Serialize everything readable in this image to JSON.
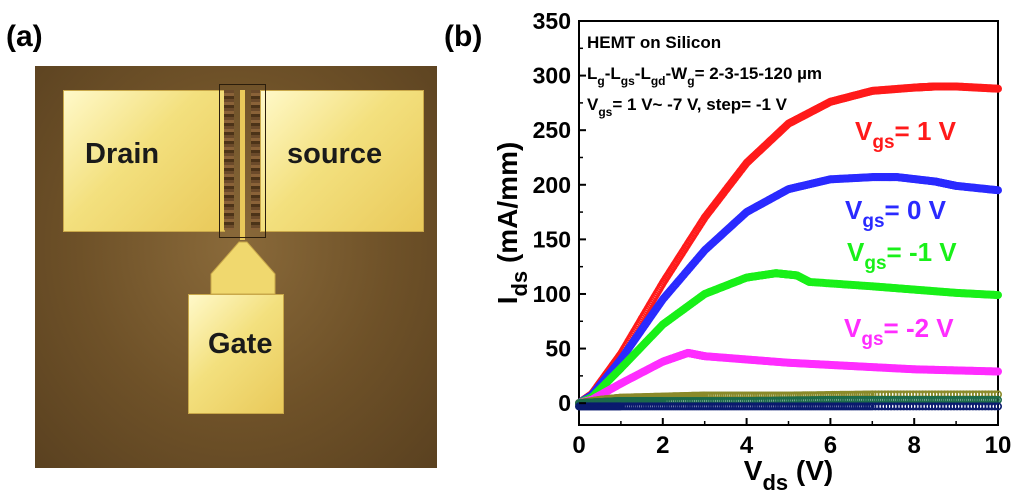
{
  "panel_a": {
    "label": "(a)",
    "drain_label": "Drain",
    "source_label": "source",
    "gate_label": "Gate"
  },
  "panel_b": {
    "label": "(b)"
  },
  "colors": {
    "vgs_1": "#ff1a1a",
    "vgs_0": "#2a2aff",
    "vgs_m1": "#19f019",
    "vgs_m2": "#ff2dff",
    "vgs_m3": "#8a8a2a",
    "vgs_m4": "#1d6b4a",
    "vgs_low": "#0a1a6e"
  },
  "chart_data": {
    "type": "scatter",
    "xlabel_main": "V",
    "xlabel_sub": "ds",
    "xlabel_unit": " (V)",
    "ylabel_main": "I",
    "ylabel_sub": "ds",
    "ylabel_unit": " (mA/mm)",
    "xlim": [
      0,
      10
    ],
    "ylim": [
      -20,
      350
    ],
    "xticks": [
      "0",
      "2",
      "4",
      "6",
      "8",
      "10"
    ],
    "yticks": [
      "0",
      "50",
      "100",
      "150",
      "200",
      "250",
      "300",
      "350"
    ],
    "grid": false,
    "annotation_lines": [
      {
        "segments": [
          {
            "t": "HEMT on Silicon",
            "sub": false
          }
        ]
      },
      {
        "segments": [
          {
            "t": "L",
            "sub": false
          },
          {
            "t": "g",
            "sub": true
          },
          {
            "t": "-L",
            "sub": false
          },
          {
            "t": "gs",
            "sub": true
          },
          {
            "t": "-L",
            "sub": false
          },
          {
            "t": "gd",
            "sub": true
          },
          {
            "t": "-W",
            "sub": false
          },
          {
            "t": "g",
            "sub": true
          },
          {
            "t": "= 2-3-15-120 µm",
            "sub": false
          }
        ]
      },
      {
        "segments": [
          {
            "t": "V",
            "sub": false
          },
          {
            "t": "gs",
            "sub": true
          },
          {
            "t": "= 1 V~ -7 V, step= -1 V",
            "sub": false
          }
        ]
      }
    ],
    "series": [
      {
        "name": "Vgs= 1 V",
        "label_main": "V",
        "label_sub": "gs",
        "label_rest": "= 1 V",
        "color": "#ff1a1a",
        "x": [
          0,
          0.3,
          1,
          2,
          3,
          4,
          5,
          6,
          7,
          8,
          8.5,
          9,
          10
        ],
        "y": [
          0,
          8,
          45,
          110,
          170,
          220,
          256,
          276,
          286,
          289,
          290,
          290,
          288
        ]
      },
      {
        "name": "Vgs= 0 V",
        "label_main": "V",
        "label_sub": "gs",
        "label_rest": "= 0 V",
        "color": "#2a2aff",
        "x": [
          0,
          0.3,
          1,
          2,
          3,
          4,
          5,
          6,
          7,
          7.6,
          8.5,
          9,
          10
        ],
        "y": [
          0,
          7,
          40,
          95,
          140,
          175,
          196,
          205,
          207,
          207,
          203,
          199,
          195
        ]
      },
      {
        "name": "Vgs= -1 V",
        "label_main": "V",
        "label_sub": "gs",
        "label_rest": "= -1 V",
        "color": "#19f019",
        "x": [
          0,
          0.3,
          1,
          2,
          3,
          4,
          4.7,
          5.2,
          5.5,
          7,
          8,
          9,
          10
        ],
        "y": [
          0,
          5,
          32,
          72,
          100,
          115,
          119,
          117,
          111,
          107,
          104,
          101,
          99
        ]
      },
      {
        "name": "Vgs= -2 V",
        "label_main": "V",
        "label_sub": "gs",
        "label_rest": "= -2 V",
        "color": "#ff2dff",
        "x": [
          0,
          0.3,
          1,
          2,
          2.6,
          3,
          4,
          5,
          6,
          7,
          8,
          9,
          10
        ],
        "y": [
          0,
          3,
          18,
          38,
          46,
          43,
          40,
          37,
          35,
          33,
          31,
          30,
          29
        ]
      },
      {
        "name": "",
        "color": "#8a8a2a",
        "x": [
          0,
          0.5,
          1,
          2,
          3,
          5,
          7,
          10
        ],
        "y": [
          0,
          3,
          5,
          6,
          7,
          7,
          8,
          8
        ]
      },
      {
        "name": "",
        "color": "#1d6b4a",
        "x": [
          0,
          0.5,
          1,
          2,
          4,
          6,
          8,
          10
        ],
        "y": [
          0,
          1,
          2,
          2,
          2,
          3,
          3,
          3
        ]
      },
      {
        "name": "",
        "color": "#0a1a6e",
        "x": [
          0,
          1,
          3,
          5,
          7,
          10
        ],
        "y": [
          -3,
          -3,
          -3,
          -3,
          -3,
          -3
        ]
      }
    ]
  }
}
